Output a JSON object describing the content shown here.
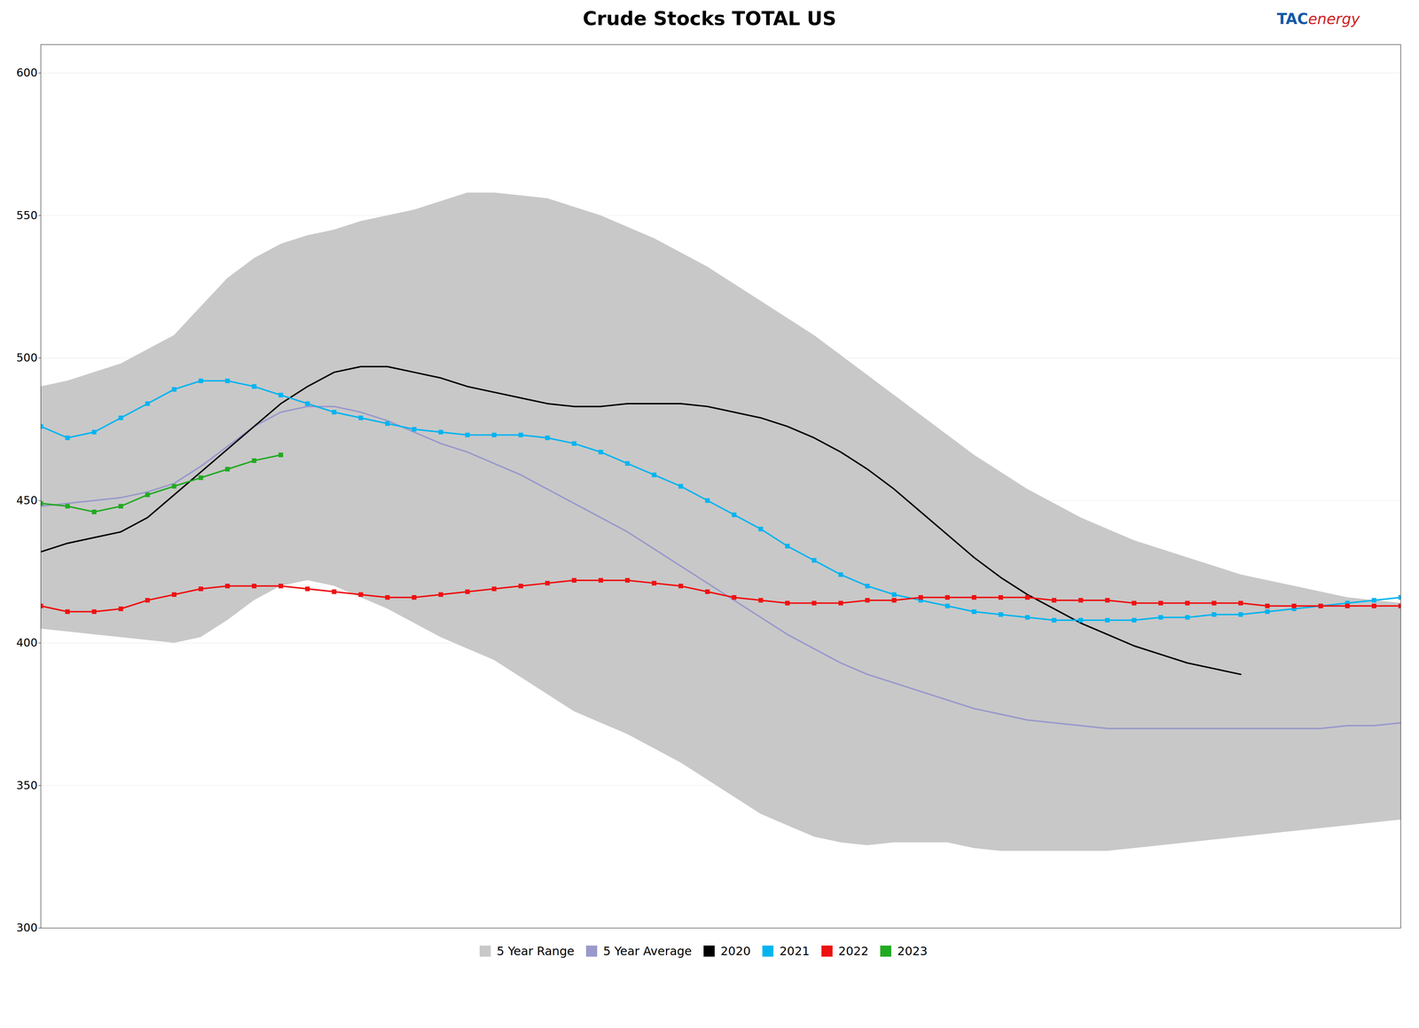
{
  "chart_data": {
    "type": "line",
    "title": "Crude Stocks  TOTAL US",
    "annotations": [
      {
        "text": "TAC",
        "color": "#1558a7"
      },
      {
        "text": "energy",
        "color": "#cc2222"
      }
    ],
    "x": [
      0,
      1,
      2,
      3,
      4,
      5,
      6,
      7,
      8,
      9,
      10,
      11,
      12,
      13,
      14,
      15,
      16,
      17,
      18,
      19,
      20,
      21,
      22,
      23,
      24,
      25,
      26,
      27,
      28,
      29,
      30,
      31,
      32,
      33,
      34,
      35,
      36,
      37,
      38,
      39,
      40,
      41,
      42,
      43,
      44,
      45,
      46,
      47,
      48,
      49,
      50,
      51
    ],
    "xlim": [
      0,
      51
    ],
    "ylim": [
      300,
      610
    ],
    "yticks": [
      300,
      350,
      400,
      450,
      500,
      550,
      600
    ],
    "grid": true,
    "legend": "bottom",
    "tick_labels": "y",
    "series": [
      {
        "name": "5 Year Range",
        "type": "band",
        "color": "#c8c8c8",
        "lower": [
          405,
          404,
          403,
          402,
          401,
          400,
          402,
          408,
          415,
          420,
          422,
          420,
          416,
          412,
          407,
          402,
          398,
          394,
          388,
          382,
          376,
          372,
          368,
          363,
          358,
          352,
          346,
          340,
          336,
          332,
          330,
          329,
          330,
          330,
          330,
          328,
          327,
          327,
          327,
          327,
          327,
          328,
          329,
          330,
          331,
          332,
          333,
          334,
          335,
          336,
          337,
          338
        ],
        "upper": [
          490,
          492,
          495,
          498,
          503,
          508,
          518,
          528,
          535,
          540,
          543,
          545,
          548,
          550,
          552,
          555,
          558,
          558,
          557,
          556,
          553,
          550,
          546,
          542,
          537,
          532,
          526,
          520,
          514,
          508,
          501,
          494,
          487,
          480,
          473,
          466,
          460,
          454,
          449,
          444,
          440,
          436,
          433,
          430,
          427,
          424,
          422,
          420,
          418,
          416,
          415,
          414
        ]
      },
      {
        "name": "5 Year Average",
        "type": "line",
        "color": "#9999cc",
        "values": [
          448,
          449,
          450,
          451,
          453,
          456,
          462,
          469,
          476,
          481,
          483,
          483,
          481,
          478,
          474,
          470,
          467,
          463,
          459,
          454,
          449,
          444,
          439,
          433,
          427,
          421,
          415,
          409,
          403,
          398,
          393,
          389,
          386,
          383,
          380,
          377,
          375,
          373,
          372,
          371,
          370,
          370,
          370,
          370,
          370,
          370,
          370,
          370,
          370,
          371,
          371,
          372
        ]
      },
      {
        "name": "2020",
        "type": "line",
        "color": "#000000",
        "values": [
          432,
          435,
          437,
          439,
          444,
          452,
          460,
          468,
          476,
          484,
          490,
          495,
          497,
          497,
          495,
          493,
          490,
          488,
          486,
          484,
          483,
          483,
          484,
          484,
          484,
          483,
          481,
          479,
          476,
          472,
          467,
          461,
          454,
          446,
          438,
          430,
          423,
          417,
          412,
          407,
          403,
          399,
          396,
          393,
          391,
          389,
          null,
          null,
          null,
          null,
          null,
          null
        ]
      },
      {
        "name": "2021",
        "type": "line",
        "color": "#00b4f0",
        "marker": "square",
        "values": [
          476,
          472,
          474,
          479,
          484,
          489,
          492,
          492,
          490,
          487,
          484,
          481,
          479,
          477,
          475,
          474,
          473,
          473,
          473,
          472,
          470,
          467,
          463,
          459,
          455,
          450,
          445,
          440,
          434,
          429,
          424,
          420,
          417,
          415,
          413,
          411,
          410,
          409,
          408,
          408,
          408,
          408,
          409,
          409,
          410,
          410,
          411,
          412,
          413,
          414,
          415,
          416
        ]
      },
      {
        "name": "2022",
        "type": "line",
        "color": "#ee1111",
        "marker": "square",
        "values": [
          413,
          411,
          411,
          412,
          415,
          417,
          419,
          420,
          420,
          420,
          419,
          418,
          417,
          416,
          416,
          417,
          418,
          419,
          420,
          421,
          422,
          422,
          422,
          421,
          420,
          418,
          416,
          415,
          414,
          414,
          414,
          415,
          415,
          416,
          416,
          416,
          416,
          416,
          415,
          415,
          415,
          414,
          414,
          414,
          414,
          414,
          413,
          413,
          413,
          413,
          413,
          413
        ]
      },
      {
        "name": "2023",
        "type": "line",
        "color": "#22aa22",
        "marker": "square",
        "values": [
          449,
          448,
          446,
          448,
          452,
          455,
          458,
          461,
          464,
          466,
          null,
          null,
          null,
          null,
          null,
          null,
          null,
          null,
          null,
          null,
          null,
          null,
          null,
          null,
          null,
          null,
          null,
          null,
          null,
          null,
          null,
          null,
          null,
          null,
          null,
          null,
          null,
          null,
          null,
          null,
          null,
          null,
          null,
          null,
          null,
          null,
          null,
          null,
          null,
          null,
          null,
          null
        ]
      }
    ]
  }
}
